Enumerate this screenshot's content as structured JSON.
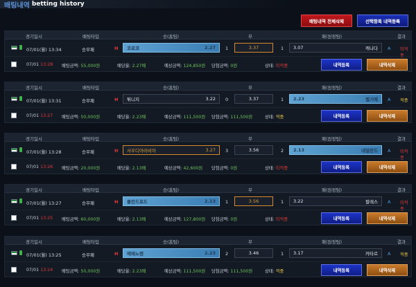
{
  "header": {
    "title_kr": "배팅내역",
    "title_en": "betting history"
  },
  "actions": {
    "delete_all": "배팅내역 전체삭제",
    "register_selected": "선택항목 내역등록"
  },
  "columns": {
    "date": "경기일시",
    "type": "배팅타입",
    "win": "승(홈팀)",
    "draw": "무",
    "lose": "패(원정팀)",
    "result": "결과"
  },
  "labels": {
    "bet_amount": "배팅금액:",
    "odds_rate": "배당율:",
    "expected": "예상금액:",
    "win_amount": "당첨금액:",
    "status": "상태:",
    "register_btn": "내역등록",
    "delete_btn": "내역삭제",
    "h_marker": "H",
    "result_marker": "A"
  },
  "bets": [
    {
      "match_time": "07/01(월) 13:34",
      "bet_type": "승무패",
      "home": "코로코",
      "home_odds": "2.27",
      "home_score": "1",
      "draw_odds": "3.37",
      "away_score": "1",
      "away_odds": "3.07",
      "away": "캐나다",
      "selected": "home",
      "draw_highlight": true,
      "result_status": "미적중",
      "bet_date": "07/01",
      "bet_time": "13:28",
      "bet_amount": "55,000원",
      "odds_rate": "2.27배",
      "expected": "124,850원",
      "win_amount": "0원",
      "status": "미적중"
    },
    {
      "match_time": "07/01(월) 13:31",
      "bet_type": "승무패",
      "home": "튀니지",
      "home_odds": "3.22",
      "home_score": "0",
      "draw_odds": "3.37",
      "away_score": "1",
      "away_odds": "2.23",
      "away": "벨기에",
      "selected": "away",
      "draw_highlight": false,
      "result_status": "적중",
      "bet_date": "07/01",
      "bet_time": "13:27",
      "bet_amount": "50,000원",
      "odds_rate": "2.23배",
      "expected": "111,500원",
      "win_amount": "111,500원",
      "status": "적중"
    },
    {
      "match_time": "07/01(월) 13:28",
      "bet_type": "승무패",
      "home": "사우디아라비아",
      "home_odds": "3.27",
      "home_score": "3",
      "draw_odds": "3.56",
      "away_score": "2",
      "away_odds": "2.13",
      "away": "네덜란드",
      "selected": "away",
      "draw_highlight": false,
      "home_highlight": true,
      "result_status": "미적중",
      "bet_date": "07/01",
      "bet_time": "13:26",
      "bet_amount": "20,000원",
      "odds_rate": "2.13배",
      "expected": "42,600원",
      "win_amount": "0원",
      "status": "미적중"
    },
    {
      "match_time": "07/01(월) 13:27",
      "bet_type": "승무패",
      "home": "폴란드포드",
      "home_odds": "2.13",
      "home_score": "1",
      "draw_odds": "3.56",
      "away_score": "1",
      "away_odds": "3.22",
      "away": "팔레스",
      "selected": "home",
      "draw_highlight": true,
      "result_status": "미적중",
      "bet_date": "07/01",
      "bet_time": "13:25",
      "bet_amount": "60,000원",
      "odds_rate": "2.13배",
      "expected": "127,800원",
      "win_amount": "0원",
      "status": "미적중"
    },
    {
      "match_time": "07/01(월) 13:25",
      "bet_type": "승무패",
      "home": "에메노렌",
      "home_odds": "2.23",
      "home_score": "2",
      "draw_odds": "3.46",
      "away_score": "1",
      "away_odds": "3.17",
      "away": "카타르",
      "selected": "home",
      "draw_highlight": false,
      "result_status": "적중",
      "bet_date": "07/01",
      "bet_time": "13:24",
      "bet_amount": "50,000원",
      "odds_rate": "2.23배",
      "expected": "111,500원",
      "win_amount": "111,500원",
      "status": "적중"
    }
  ],
  "colors": {
    "selected_bar": "#5fa3d3",
    "hit": "#e8c84a",
    "miss": "#e03a3a",
    "amount": "#6fc35b"
  }
}
